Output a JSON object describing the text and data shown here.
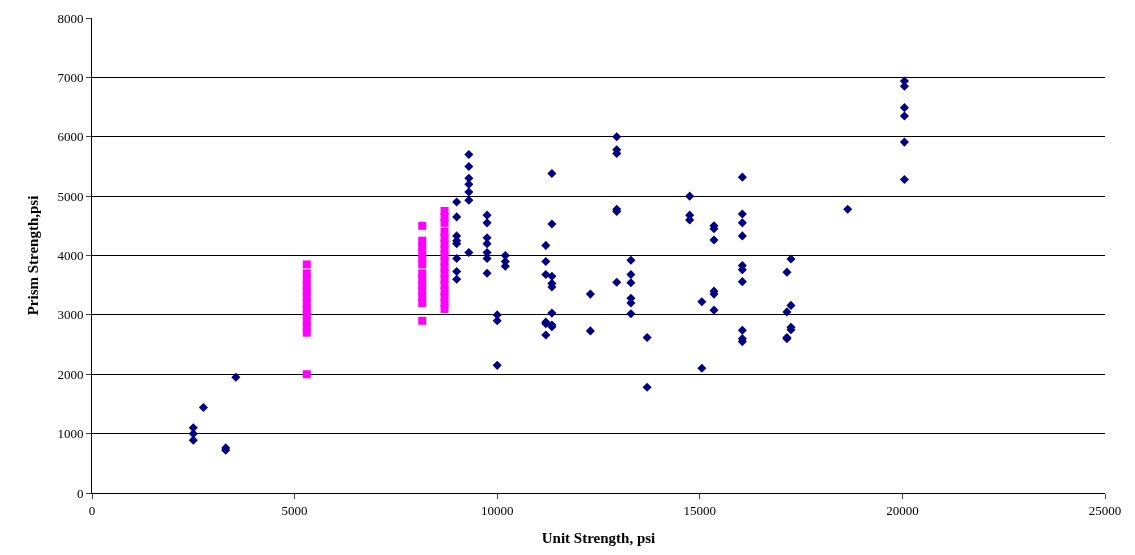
{
  "chart_data": {
    "type": "scatter",
    "xlabel": "Unit Strength, psi",
    "ylabel": "Prism Strength,psi",
    "xlim": [
      0,
      25000
    ],
    "xticks": [
      0,
      5000,
      10000,
      15000,
      20000,
      25000
    ],
    "ylim": [
      0,
      8000
    ],
    "yticks": [
      0,
      1000,
      2000,
      3000,
      4000,
      5000,
      6000,
      7000,
      8000
    ],
    "grid": "y",
    "series": [
      {
        "color": "#000080",
        "marker": "diamond",
        "x": [
          2500,
          2500,
          2500,
          2750,
          3300,
          3300,
          3550,
          9000,
          9000,
          9000,
          9000,
          9000,
          9000,
          9000,
          9000,
          9300,
          9300,
          9300,
          9300,
          9300,
          9300,
          9300,
          9750,
          9750,
          9750,
          9750,
          9750,
          9750,
          9750,
          10000,
          10000,
          10000,
          10200,
          10200,
          10200,
          11200,
          11200,
          11200,
          11200,
          11200,
          11200,
          11350,
          11350,
          11350,
          11350,
          11350,
          11350,
          11350,
          11350,
          12300,
          12300,
          12950,
          12950,
          12950,
          12950,
          12950,
          12950,
          13300,
          13300,
          13300,
          13300,
          13300,
          13300,
          13700,
          13700,
          14750,
          14750,
          14750,
          15050,
          15050,
          15350,
          15350,
          15350,
          15350,
          15350,
          15350,
          16050,
          16050,
          16050,
          16050,
          16050,
          16050,
          16050,
          16050,
          16050,
          16050,
          17150,
          17150,
          17150,
          17150,
          17250,
          17250,
          17250,
          17250,
          18650,
          20050,
          20050,
          20050,
          20050,
          20050,
          20050
        ],
        "values": [
          1100,
          1000,
          890,
          1440,
          760,
          720,
          1950,
          4900,
          4650,
          4330,
          4250,
          4200,
          3950,
          3730,
          3600,
          5700,
          5500,
          5300,
          5200,
          5070,
          4930,
          4050,
          4680,
          4550,
          4300,
          4200,
          4050,
          3950,
          3700,
          3000,
          2900,
          2150,
          4000,
          3900,
          3820,
          4170,
          3900,
          3680,
          2880,
          2850,
          2660,
          5380,
          4530,
          3650,
          3530,
          3470,
          3030,
          2830,
          2800,
          3350,
          2730,
          6000,
          5780,
          5720,
          4780,
          4740,
          3550,
          3920,
          3680,
          3540,
          3280,
          3200,
          3020,
          2620,
          1780,
          5000,
          4680,
          4600,
          3220,
          2100,
          4500,
          4450,
          4260,
          3400,
          3350,
          3080,
          5320,
          4700,
          4550,
          4330,
          3830,
          3760,
          3560,
          2740,
          2600,
          2550,
          3720,
          3050,
          2620,
          2600,
          3940,
          3160,
          2790,
          2750,
          4780,
          6940,
          6850,
          6490,
          6350,
          5910,
          5280
        ]
      },
      {
        "color": "#ff00ff",
        "marker": "square",
        "x": [
          5300,
          5300,
          5300,
          5300,
          5300,
          5300,
          5300,
          5300,
          5300,
          5300,
          5300,
          5300,
          5300,
          8150,
          8150,
          8150,
          8150,
          8150,
          8150,
          8150,
          8150,
          8150,
          8150,
          8150,
          8150,
          8150,
          8700,
          8700,
          8700,
          8700,
          8700,
          8700,
          8700,
          8700,
          8700,
          8700,
          8700,
          8700,
          8700,
          8700,
          8700,
          8700,
          8700
        ],
        "values": [
          2000,
          2700,
          2800,
          2900,
          3000,
          3100,
          3200,
          3300,
          3400,
          3500,
          3600,
          3700,
          3850,
          2900,
          3200,
          3300,
          3400,
          3500,
          3600,
          3700,
          3850,
          3950,
          4050,
          4150,
          4250,
          4500,
          3100,
          3200,
          3300,
          3400,
          3500,
          3600,
          3700,
          3800,
          3900,
          4000,
          4100,
          4200,
          4300,
          4400,
          4550,
          4650,
          4750
        ]
      }
    ]
  }
}
